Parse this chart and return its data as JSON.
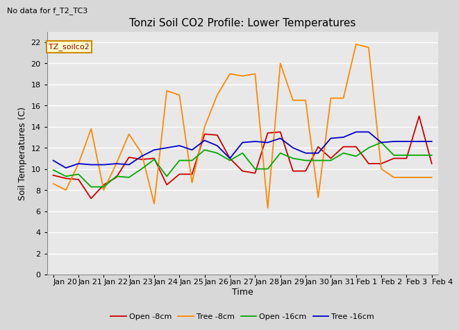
{
  "title": "Tonzi Soil CO2 Profile: Lower Temperatures",
  "subtitle": "No data for f_T2_TC3",
  "ylabel": "Soil Temperatures (C)",
  "xlabel": "Time",
  "annotation": "TZ_soilco2",
  "ylim": [
    0,
    23
  ],
  "yticks": [
    0,
    2,
    4,
    6,
    8,
    10,
    12,
    14,
    16,
    18,
    20,
    22
  ],
  "background_color": "#e8e8e8",
  "xtick_labels": [
    "Jan 20",
    "Jan 21",
    "Jan 22",
    "Jan 23",
    "Jan 24",
    "Jan 25",
    "Jan 26",
    "Jan 27",
    "Jan 28",
    "Jan 29",
    "Jan 30",
    "Jan 31",
    "Feb 1",
    "Feb 2",
    "Feb 3",
    "Feb 4"
  ],
  "x_values": [
    0,
    2,
    4,
    6,
    8,
    10,
    12,
    14,
    16,
    18,
    20,
    22,
    24,
    26,
    28,
    30
  ],
  "open_8cm": [
    9.4,
    9.1,
    9.0,
    7.2,
    8.5,
    9.2,
    11.1,
    10.9,
    11.0,
    8.5,
    9.5,
    9.5,
    13.3,
    13.2,
    11.0,
    9.8,
    9.6,
    13.4,
    13.5,
    9.8,
    9.8,
    12.1,
    11.0,
    12.1,
    12.1,
    10.5,
    10.5,
    11.0,
    11.0,
    15.0,
    10.5
  ],
  "tree_8cm": [
    8.6,
    8.0,
    10.5,
    13.8,
    8.0,
    10.5,
    13.3,
    11.5,
    6.7,
    17.4,
    17.0,
    8.7,
    14.0,
    17.0,
    19.0,
    18.8,
    19.0,
    6.3,
    20.0,
    16.5,
    16.5,
    7.3,
    16.7,
    16.7,
    21.8,
    21.5,
    10.0,
    9.2,
    9.2,
    9.2,
    9.2
  ],
  "open_16cm": [
    9.9,
    9.3,
    9.5,
    8.3,
    8.3,
    9.3,
    9.2,
    10.0,
    10.9,
    9.3,
    10.8,
    10.8,
    11.8,
    11.5,
    10.8,
    11.5,
    10.0,
    10.0,
    11.5,
    11.0,
    10.8,
    10.8,
    10.8,
    11.5,
    11.2,
    12.0,
    12.5,
    11.3,
    11.3,
    11.3,
    11.3
  ],
  "tree_16cm": [
    10.8,
    10.1,
    10.5,
    10.4,
    10.4,
    10.5,
    10.4,
    11.2,
    11.8,
    12.0,
    12.2,
    11.8,
    12.7,
    12.2,
    11.0,
    12.5,
    12.6,
    12.5,
    12.9,
    12.0,
    11.5,
    11.5,
    12.9,
    13.0,
    13.5,
    13.5,
    12.5,
    12.6,
    12.6,
    12.6,
    12.6
  ],
  "open_8cm_color": "#cc0000",
  "tree_8cm_color": "#ff8800",
  "open_16cm_color": "#00aa00",
  "tree_16cm_color": "#0000cc",
  "legend_entries": [
    "Open -8cm",
    "Tree -8cm",
    "Open -16cm",
    "Tree -16cm"
  ],
  "title_fontsize": 11,
  "axis_label_fontsize": 9,
  "tick_fontsize": 8,
  "subtitle_fontsize": 8,
  "annotation_fontsize": 8
}
